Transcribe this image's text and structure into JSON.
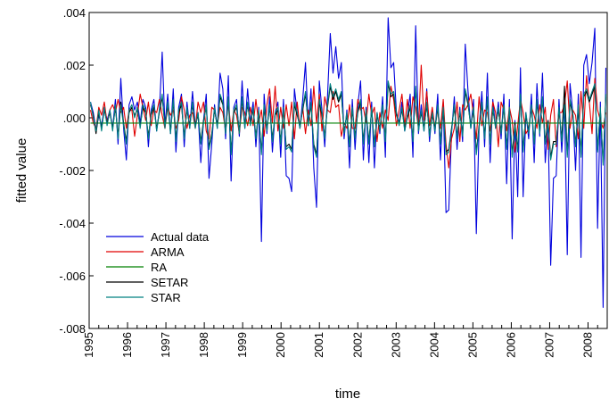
{
  "chart_data": {
    "type": "line",
    "xlabel": "time",
    "ylabel": "fitted value",
    "ylim": [
      -0.008,
      0.004
    ],
    "xlim": [
      1995.0,
      2008.5
    ],
    "y_ticks": [
      ".004",
      ".002",
      ".000",
      "-.002",
      "-.004",
      "-.006",
      "-.008"
    ],
    "x_ticks": [
      "1995",
      "1996",
      "1997",
      "1998",
      "1999",
      "2000",
      "2001",
      "2002",
      "2003",
      "2004",
      "2005",
      "2006",
      "2007",
      "2008"
    ],
    "legend_position": "bottom-left",
    "grid": false,
    "colors": {
      "Actual data": "#0000dd",
      "ARMA": "#e00000",
      "RA": "#008000",
      "SETAR": "#000000",
      "STAR": "#008080"
    },
    "series": [
      {
        "name": "Actual data",
        "values": [
          0.0006,
          0.0002,
          -0.0005,
          0.0001,
          -0.0003,
          0.0004,
          -0.0001,
          0.0003,
          -0.0004,
          0.0007,
          -0.001,
          0.0015,
          -0.0004,
          -0.0016,
          0.0005,
          0.0008,
          0.0003,
          0.0006,
          -0.0002,
          0.0007,
          0.0004,
          -0.0011,
          0.0003,
          0.0007,
          -0.0005,
          0.0003,
          0.0025,
          -0.0003,
          0.0009,
          -0.0006,
          0.0011,
          -0.0013,
          0.0004,
          0.0009,
          -0.0011,
          0.0006,
          -0.0004,
          0.001,
          -0.0003,
          0.0002,
          -0.0017,
          -0.0001,
          0.0009,
          -0.0023,
          -0.001,
          0.0005,
          -0.0004,
          0.0017,
          0.0011,
          -0.0008,
          0.0016,
          -0.0024,
          0.0004,
          0.0007,
          -0.0007,
          0.0014,
          -0.0004,
          0.0011,
          -0.0002,
          0.0006,
          -0.0011,
          0.0004,
          -0.0047,
          0.0009,
          -0.0006,
          0.0008,
          -0.0013,
          0.0002,
          0.0006,
          -0.0015,
          0.0007,
          -0.0022,
          -0.0023,
          -0.0028,
          0.0011,
          0.0002,
          -0.0004,
          0.0007,
          0.0021,
          -0.0003,
          0.0011,
          -0.0019,
          -0.0034,
          0.0014,
          0.0003,
          -0.0011,
          0.0008,
          0.0032,
          0.0017,
          0.0027,
          0.0015,
          0.0021,
          -0.0008,
          0.0003,
          -0.0019,
          0.0007,
          -0.0012,
          0.0005,
          0.0014,
          -0.0016,
          0.0004,
          -0.0017,
          0.0006,
          -0.0019,
          0.0002,
          -0.0006,
          0.0008,
          -0.0015,
          0.0038,
          0.0019,
          0.0021,
          0.0002,
          -0.0002,
          0.0006,
          -0.0005,
          0.0001,
          0.0009,
          -0.0015,
          0.0035,
          -0.0006,
          0.0005,
          -0.0005,
          0.0011,
          -0.0009,
          0.0003,
          -0.0006,
          0.0009,
          -0.0016,
          0.0006,
          -0.0036,
          -0.0035,
          -0.0006,
          0.0008,
          -0.0012,
          0.0004,
          -0.0009,
          0.0028,
          0.001,
          -0.0004,
          0.0007,
          -0.0044,
          -0.0004,
          0.001,
          -0.0011,
          0.0017,
          -0.0017,
          0.0007,
          -0.0004,
          0.0006,
          -0.0008,
          0.0009,
          -0.0025,
          0.0007,
          -0.0046,
          -0.0001,
          -0.003,
          0.0019,
          -0.003,
          0.0002,
          -0.0008,
          0.0009,
          -0.0017,
          0.0013,
          -0.0007,
          0.0017,
          -0.0017,
          -0.0001,
          -0.0056,
          -0.0023,
          -0.0022,
          0.0007,
          -0.0013,
          0.0005,
          -0.0052,
          0.0013,
          0.0002,
          -0.002,
          0.0009,
          -0.0053,
          0.002,
          0.0024,
          0.0013,
          0.0021,
          0.0034,
          -0.0042,
          0.0006,
          -0.0072,
          0.0019
        ]
      },
      {
        "name": "ARMA",
        "values": [
          0.0003,
          -0.0002,
          -0.0004,
          0.0004,
          0.0001,
          0.0006,
          -0.0002,
          0.0003,
          0.0005,
          0.0002,
          0.0007,
          0.0002,
          0.0004,
          -0.0004,
          0.0003,
          0.0003,
          -0.0007,
          0.0001,
          0.0009,
          0.0004,
          -0.0001,
          0.0006,
          -0.0003,
          0.0003,
          0.0002,
          0.0007,
          0.0001,
          -0.0004,
          0.0004,
          0.0001,
          0.0003,
          -0.0004,
          -0.0001,
          0.0008,
          0.0003,
          -0.0004,
          0.0001,
          0.0002,
          -0.0004,
          0.0006,
          0.0002,
          0.0006,
          -0.0005,
          -0.0008,
          0.0004,
          0.0003,
          -0.0003,
          0.0004,
          0.0002,
          -0.0005,
          0.0006,
          -0.0005,
          0.0003,
          0.0001,
          -0.0006,
          0.0004,
          0.0002,
          -0.0003,
          0.0004,
          -0.0003,
          0.0007,
          -0.0002,
          0.0003,
          -0.0007,
          0.0005,
          0.0011,
          -0.0002,
          0.0012,
          -0.0005,
          0.0004,
          -0.0004,
          0.0005,
          -0.0003,
          0.0006,
          -0.0008,
          0.0006,
          -0.0004,
          0.0004,
          -0.0006,
          0.0003,
          -0.0003,
          0.0012,
          -0.0002,
          0.0009,
          -0.0005,
          0.0008,
          0.0003,
          0.0002,
          0.001,
          0.0004,
          0.0005,
          -0.0007,
          -0.0002,
          -0.0004,
          0.0005,
          -0.0004,
          -0.0004,
          0.0007,
          0.0003,
          0.0004,
          -0.0002,
          0.0009,
          0.0001,
          0.0004,
          -0.0009,
          0.0002,
          -0.0004,
          0.0003,
          -0.0001,
          0.0012,
          0.0007,
          -0.0003,
          0.0003,
          0.0009,
          -0.0003,
          0.0007,
          -0.0004,
          0.0008,
          0.0004,
          -0.0004,
          0.002,
          -0.0001,
          0.001,
          -0.0003,
          0.0004,
          -0.0004,
          0.0003,
          -0.0004,
          0.0007,
          -0.001,
          -0.0019,
          -0.0008,
          -0.0004,
          0.0006,
          -0.0009,
          0.0005,
          0.0003,
          0.0005,
          0.0009,
          0.0001,
          -0.0008,
          0.0008,
          -0.0003,
          0.0003,
          0.0002,
          -0.0005,
          0.0006,
          0.0002,
          -0.0011,
          0.0006,
          0.0003,
          -0.0005,
          0.0004,
          -0.0001,
          -0.0013,
          -0.0003,
          0.0007,
          0.0002,
          -0.0006,
          -0.0004,
          0.0004,
          0.0001,
          -0.0004,
          0.0005,
          -0.0002,
          0.0004,
          -0.0012,
          0.0001,
          0.0007,
          -0.0011,
          0.0002,
          0.0002,
          0.0005,
          0.0014,
          -0.0004,
          0.0003,
          0.0001,
          -0.0008,
          0.001,
          -0.0004,
          0.0016,
          0.0006,
          -0.0006,
          0.0015,
          0.0003,
          -0.0001,
          -0.0004,
          0.0002
        ]
      },
      {
        "name": "RA",
        "values": [
          -0.0002,
          -0.0002,
          -0.0002,
          -0.0002,
          -0.0002,
          -0.0002,
          -0.0002,
          -0.0002,
          -0.0002,
          -0.0002,
          -0.0002,
          -0.0002,
          -0.0002,
          -0.0002,
          -0.0002,
          -0.0002,
          -0.0002,
          -0.0002,
          -0.0002,
          -0.0002,
          -0.0002,
          -0.0002,
          -0.0002,
          -0.0002,
          -0.0002,
          -0.0002,
          -0.0002,
          -0.0002,
          -0.0002,
          -0.0002,
          -0.0002,
          -0.0002,
          -0.0002,
          -0.0002,
          -0.0002,
          -0.0002,
          -0.0002,
          -0.0002,
          -0.0002,
          -0.0002,
          -0.0002,
          -0.0002,
          -0.0002,
          -0.0002,
          -0.0002,
          -0.0002,
          -0.0002,
          -0.0002,
          -0.0002,
          -0.0002,
          -0.0002,
          -0.0002,
          -0.0002,
          -0.0002,
          -0.0002,
          -0.0002,
          -0.0002,
          -0.0002,
          -0.0002,
          -0.0002,
          -0.0002,
          -0.0002,
          -0.0002,
          -0.0002,
          -0.0002,
          -0.0002,
          -0.0002,
          -0.0002,
          -0.0002,
          -0.0002,
          -0.0002,
          -0.0002,
          -0.0002,
          -0.0002,
          -0.0002,
          -0.0002,
          -0.0002,
          -0.0002,
          -0.0002,
          -0.0002,
          -0.0002,
          -0.0002,
          -0.0002,
          -0.0002,
          -0.0002,
          -0.0002,
          -0.0002,
          -0.0002,
          -0.0002,
          -0.0002,
          -0.0002,
          -0.0002,
          -0.0002,
          -0.0002,
          -0.0002,
          -0.0002,
          -0.0002,
          -0.0002,
          -0.0002,
          -0.0002,
          -0.0002,
          -0.0002,
          -0.0002,
          -0.0002,
          -0.0002,
          -0.0002,
          -0.0002,
          -0.0002,
          -0.0002,
          -0.0002,
          -0.0002,
          -0.0002,
          -0.0002,
          -0.0002,
          -0.0002,
          -0.0002,
          -0.0002,
          -0.0002,
          -0.0002,
          -0.0002,
          -0.0002,
          -0.0002,
          -0.0002,
          -0.0002,
          -0.0002,
          -0.0002,
          -0.0002,
          -0.0002,
          -0.0002,
          -0.0002,
          -0.0002,
          -0.0002,
          -0.0002,
          -0.0002,
          -0.0002,
          -0.0002,
          -0.0002,
          -0.0002,
          -0.0002,
          -0.0002,
          -0.0002,
          -0.0002,
          -0.0002,
          -0.0002,
          -0.0002,
          -0.0002,
          -0.0002,
          -0.0002,
          -0.0002,
          -0.0002,
          -0.0002,
          -0.0002,
          -0.0002,
          -0.0002,
          -0.0002,
          -0.0002,
          -0.0002,
          -0.0002,
          -0.0002,
          -0.0002,
          -0.0002,
          -0.0002,
          -0.0002,
          -0.0002,
          -0.0002,
          -0.0002,
          -0.0002,
          -0.0002,
          -0.0002,
          -0.0002,
          -0.0002,
          -0.0002,
          -0.0002,
          -0.0002,
          -0.0002,
          -0.0002,
          -0.0002,
          -0.0002,
          -0.0002,
          -0.0002,
          -0.0002,
          -0.0002,
          -0.0002,
          -0.0002,
          -0.0002,
          -0.0002,
          -0.0002,
          -0.0002,
          -0.0002
        ]
      },
      {
        "name": "SETAR",
        "values": [
          0.0005,
          0.0001,
          -0.0006,
          0.0002,
          -0.0004,
          0.0003,
          -0.0002,
          0.0002,
          -0.0004,
          0.0004,
          -0.0007,
          0.0006,
          -0.0002,
          -0.0009,
          0.0002,
          0.0004,
          0.0001,
          0.0003,
          -0.0003,
          0.0004,
          0.0002,
          -0.0007,
          0.0001,
          0.0004,
          -0.0004,
          0.0002,
          0.0008,
          -0.0003,
          0.0005,
          -0.0005,
          0.0006,
          -0.0008,
          0.0002,
          0.0005,
          -0.0007,
          0.0003,
          -0.0003,
          0.0005,
          -0.0003,
          0.0001,
          -0.0009,
          -0.0001,
          0.0004,
          -0.0011,
          -0.0006,
          0.0003,
          -0.0003,
          0.0008,
          0.0005,
          -0.0005,
          0.0007,
          -0.0013,
          0.0002,
          0.0004,
          -0.0005,
          0.0007,
          -0.0003,
          0.0005,
          -0.0002,
          0.0003,
          -0.0007,
          0.0002,
          -0.0013,
          0.0004,
          -0.0004,
          0.0004,
          -0.0008,
          0.0001,
          0.0003,
          -0.0009,
          0.0003,
          -0.0011,
          -0.001,
          -0.0012,
          0.0005,
          0.0001,
          -0.0003,
          0.0003,
          0.0009,
          -0.0002,
          0.0005,
          -0.001,
          -0.0014,
          0.0006,
          0.0001,
          -0.0007,
          0.0004,
          0.0012,
          0.0007,
          0.001,
          0.0006,
          0.0009,
          -0.0005,
          0.0001,
          -0.001,
          0.0003,
          -0.0007,
          0.0002,
          0.0006,
          -0.0009,
          0.0002,
          -0.0009,
          0.0003,
          -0.001,
          0.0001,
          -0.0004,
          0.0004,
          -0.0008,
          0.0013,
          0.0008,
          0.0009,
          0.0001,
          -0.0002,
          0.0003,
          -0.0004,
          0.0,
          0.0004,
          -0.0008,
          0.0011,
          -0.0004,
          0.0002,
          -0.0004,
          0.0005,
          -0.0006,
          0.0001,
          -0.0004,
          0.0004,
          -0.0009,
          0.0003,
          -0.0013,
          -0.0012,
          -0.0004,
          0.0004,
          -0.0007,
          0.0002,
          -0.0006,
          0.001,
          0.0005,
          -0.0003,
          0.0003,
          -0.0013,
          -0.0003,
          0.0005,
          -0.0007,
          0.0007,
          -0.0009,
          0.0003,
          -0.0003,
          0.0003,
          -0.0005,
          0.0004,
          -0.0011,
          0.0003,
          -0.0014,
          -0.0002,
          -0.0012,
          0.0008,
          -0.0012,
          0.0001,
          -0.0005,
          0.0004,
          -0.0009,
          0.0006,
          -0.0005,
          0.0007,
          -0.0009,
          -0.0001,
          -0.0015,
          -0.0009,
          -0.0009,
          0.0003,
          -0.0008,
          0.0012,
          -0.0014,
          0.0006,
          0.0001,
          -0.001,
          0.0004,
          -0.0014,
          0.0008,
          0.001,
          0.0006,
          0.0009,
          0.0012,
          -0.0012,
          0.0003,
          -0.0017,
          0.0008
        ]
      },
      {
        "name": "STAR",
        "values": [
          0.0006,
          0.0,
          -0.0005,
          0.0003,
          -0.0005,
          0.0004,
          -0.0003,
          0.0003,
          -0.0005,
          0.0005,
          -0.0008,
          0.0005,
          -0.0003,
          -0.001,
          0.0003,
          0.0005,
          0.0,
          0.0004,
          -0.0004,
          0.0005,
          0.0003,
          -0.0008,
          0.0002,
          0.0005,
          -0.0005,
          0.0003,
          0.0009,
          -0.0004,
          0.0006,
          -0.0006,
          0.0007,
          -0.0009,
          0.0003,
          0.0006,
          -0.0008,
          0.0004,
          -0.0004,
          0.0006,
          -0.0004,
          0.0002,
          -0.001,
          -0.0002,
          0.0005,
          -0.0012,
          -0.0007,
          0.0004,
          -0.0004,
          0.0009,
          0.0006,
          -0.0006,
          0.0008,
          -0.0014,
          0.0003,
          0.0005,
          -0.0006,
          0.0008,
          -0.0004,
          0.0006,
          -0.0003,
          0.0004,
          -0.0008,
          0.0003,
          -0.0014,
          0.0005,
          -0.0005,
          0.0005,
          -0.0009,
          0.0002,
          0.0004,
          -0.001,
          0.0004,
          -0.0012,
          -0.0011,
          -0.0013,
          0.0006,
          0.0002,
          -0.0004,
          0.0004,
          0.001,
          -0.0003,
          0.0006,
          -0.0011,
          -0.0015,
          0.0007,
          0.0002,
          -0.0008,
          0.0005,
          0.0013,
          0.0008,
          0.0011,
          0.0007,
          0.001,
          -0.0006,
          0.0002,
          -0.0011,
          0.0004,
          -0.0008,
          0.0003,
          0.0007,
          -0.001,
          0.0003,
          -0.001,
          0.0004,
          -0.0011,
          0.0002,
          -0.0005,
          0.0005,
          -0.0009,
          0.0014,
          0.0009,
          0.001,
          0.0002,
          -0.0003,
          0.0004,
          -0.0005,
          0.0001,
          0.0005,
          -0.0009,
          0.0012,
          -0.0005,
          0.0003,
          -0.0005,
          0.0006,
          -0.0007,
          0.0002,
          -0.0005,
          0.0005,
          -0.001,
          0.0004,
          -0.0014,
          -0.0013,
          -0.0005,
          0.0005,
          -0.0008,
          0.0003,
          -0.0007,
          0.0011,
          0.0006,
          -0.0004,
          0.0004,
          -0.0014,
          -0.0004,
          0.0006,
          -0.0008,
          0.0008,
          -0.001,
          0.0004,
          -0.0004,
          0.0004,
          -0.0006,
          0.0005,
          -0.0012,
          0.0004,
          -0.0015,
          -0.0003,
          -0.0013,
          0.0009,
          -0.0013,
          0.0002,
          -0.0006,
          0.0005,
          -0.001,
          0.0007,
          -0.0006,
          0.0008,
          -0.001,
          -0.0002,
          -0.0016,
          -0.001,
          -0.001,
          0.0004,
          -0.0009,
          0.0005,
          -0.0015,
          0.0007,
          0.0002,
          -0.0011,
          0.0005,
          -0.0015,
          0.0009,
          0.0011,
          0.0007,
          0.001,
          0.0013,
          -0.0013,
          0.0004,
          -0.0018,
          0.0009
        ]
      }
    ]
  }
}
